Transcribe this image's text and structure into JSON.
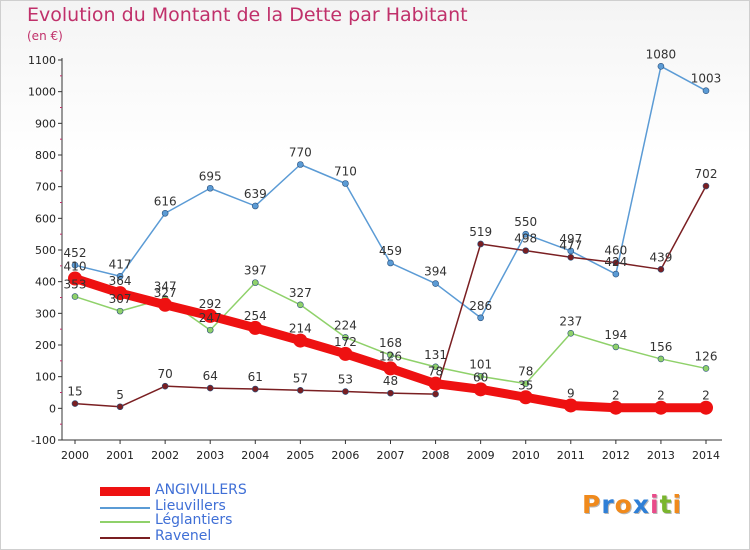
{
  "header": {
    "title": "Evolution du Montant de la Dette par Habitant",
    "unit": "(en €)"
  },
  "brand": {
    "letters": [
      "P",
      "r",
      "o",
      "x",
      "i",
      "t",
      "i"
    ],
    "colors": [
      "#f08a1c",
      "#2f7fd6",
      "#f08a1c",
      "#2f7fd6",
      "#e94b8a",
      "#7ab52e",
      "#f08a1c"
    ]
  },
  "chart_data": {
    "type": "line",
    "title": "Evolution du Montant de la Dette par Habitant",
    "ylabel": "(en €)",
    "xlabel": "",
    "ylim": [
      -100,
      1100
    ],
    "yticks": [
      -100,
      0,
      100,
      200,
      300,
      400,
      500,
      600,
      700,
      800,
      900,
      1000,
      1100
    ],
    "grid": false,
    "legend": "bottom-left",
    "x": [
      "2000",
      "2001",
      "2002",
      "2003",
      "2004",
      "2005",
      "2006",
      "2007",
      "2008",
      "2009",
      "2010",
      "2011",
      "2012",
      "2013",
      "2014"
    ],
    "series": [
      {
        "name": "Lieuvillers",
        "color": "#5b9bd5",
        "values": [
          452,
          417,
          616,
          695,
          639,
          770,
          710,
          459,
          394,
          286,
          550,
          497,
          424,
          1080,
          1003
        ],
        "labels": [
          "452",
          "417",
          "616",
          "695",
          "639",
          "770",
          "710",
          "459",
          "394",
          "286",
          "550",
          "497",
          "424",
          "1080",
          "1003"
        ]
      },
      {
        "name": "Léglantiers",
        "color": "#8fd16a",
        "values": [
          353,
          307,
          347,
          247,
          397,
          327,
          224,
          168,
          131,
          101,
          78,
          237,
          194,
          156,
          126
        ],
        "labels": [
          "353",
          "307",
          "347",
          "247",
          "397",
          "327",
          "224",
          "168",
          "131",
          "101",
          "78",
          "237",
          "194",
          "156",
          "126"
        ]
      },
      {
        "name": "Ravenel",
        "color": "#7a1f22",
        "values": [
          15,
          5,
          70,
          64,
          61,
          57,
          53,
          48,
          45,
          519,
          498,
          477,
          460,
          439,
          702
        ],
        "labels": [
          "15",
          "5",
          "70",
          "64",
          "61",
          "57",
          "53",
          "48",
          "",
          "519",
          "498",
          "477",
          "460",
          "439",
          "702"
        ]
      },
      {
        "name": "ANGIVILLERS",
        "color": "#ee1111",
        "values": [
          410,
          364,
          327,
          292,
          254,
          214,
          172,
          126,
          78,
          60,
          35,
          9,
          2,
          2,
          2
        ],
        "labels": [
          "410",
          "364",
          "327",
          "292",
          "254",
          "214",
          "172",
          "126",
          "78",
          "60",
          "35",
          "9",
          "2",
          "2",
          "2"
        ]
      }
    ]
  },
  "legend": {
    "items": [
      {
        "label": "ANGIVILLERS",
        "color": "#ee1111"
      },
      {
        "label": "Lieuvillers",
        "color": "#5b9bd5"
      },
      {
        "label": "Léglantiers",
        "color": "#8fd16a"
      },
      {
        "label": "Ravenel",
        "color": "#7a1f22"
      }
    ]
  }
}
